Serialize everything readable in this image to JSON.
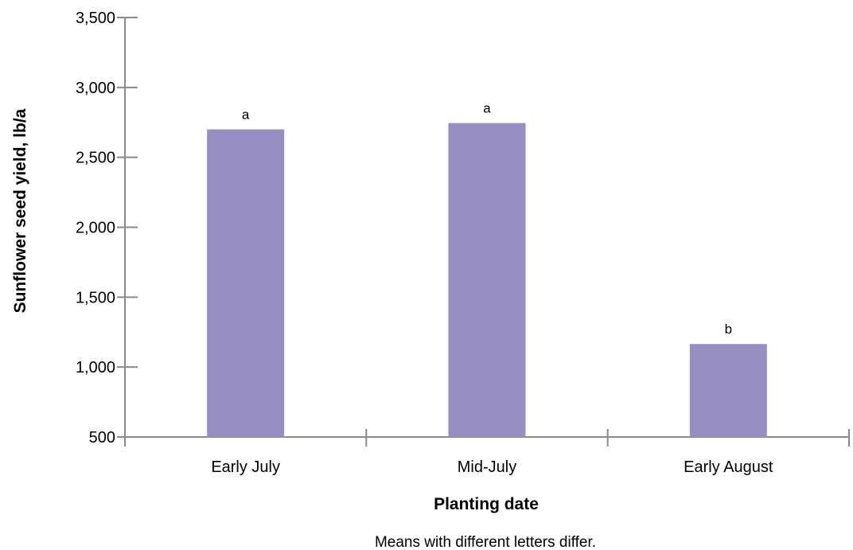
{
  "chart_data": {
    "type": "bar",
    "categories": [
      "Early July",
      "Mid-July",
      "Early August"
    ],
    "values": [
      2700,
      2745,
      1165
    ],
    "bar_labels": [
      "a",
      "a",
      "b"
    ],
    "xlabel": "Planting date",
    "ylabel": "Sunflower seed yield, lb/a",
    "ylim": [
      500,
      3500
    ],
    "yticks": [
      500,
      1000,
      1500,
      2000,
      2500,
      3000,
      3500
    ],
    "ytick_labels": [
      "500",
      "1,000",
      "1,500",
      "2,000",
      "2,500",
      "3,000",
      "3,500"
    ],
    "grid": false,
    "bar_color": "#968fc1",
    "axis_color": "#8a8a8a",
    "footnote": "Means with different letters differ."
  }
}
